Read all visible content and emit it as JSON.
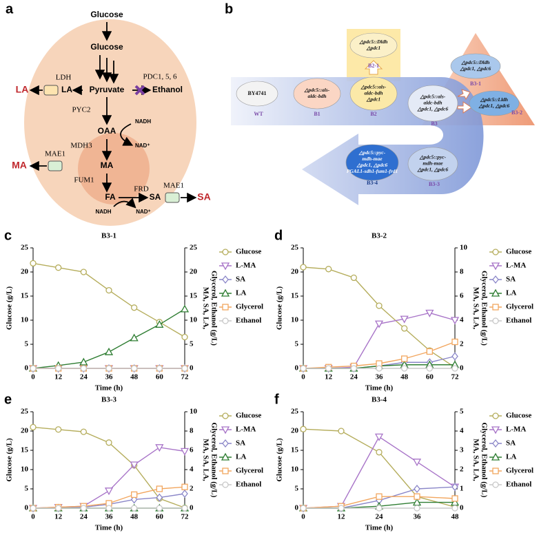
{
  "panel_a": {
    "label": "a",
    "glucose_ext": "Glucose",
    "glucose_in": "Glucose",
    "pyruvate": "Pyruvate",
    "ldh": "LDH",
    "la_in": "LA",
    "la_out": "LA",
    "pdc": "PDC1, 5, 6",
    "ethanol": "Ethanol",
    "pyc2": "PYC2",
    "oaa": "OAA",
    "nadh_1": "NADH",
    "nad_1": "NAD⁺",
    "mdh3": "MDH3",
    "mae1_ma": "MAE1",
    "ma_in": "MA",
    "ma_out": "MA",
    "fum1": "FUM1",
    "frd": "FRD",
    "fa": "FA",
    "sa_in": "SA",
    "mae1_sa": "MAE1",
    "sa_out": "SA",
    "nadh_2": "NADH",
    "nad_2": "NAD⁺"
  },
  "panel_b": {
    "label": "b",
    "strains": [
      {
        "genotype": [
          "BY4741"
        ],
        "name": "WT"
      },
      {
        "genotype": [
          "△pdc5::als-",
          "aldc-bdh"
        ],
        "name": "B1"
      },
      {
        "genotype": [
          "△pdc5::als-",
          "aldc-bdh",
          "△pdc1"
        ],
        "name": "B2"
      },
      {
        "genotype": [
          "△pdc5::als-",
          "aldc-bdh",
          "△pdc1, △pdc6"
        ],
        "name": "B3"
      },
      {
        "genotype": [
          "△pdc5::Dldh",
          "△pdc1"
        ],
        "name": "B2-1"
      },
      {
        "genotype": [
          "△pdc5::Dldh",
          "△pdc1, △pdc6"
        ],
        "name": "B3-1"
      },
      {
        "genotype": [
          "△pdc5::Lldh",
          "△pdc1, △pdc6"
        ],
        "name": "B3-2"
      },
      {
        "genotype": [
          "△pdc5::pyc-",
          "mdh-mae",
          "△pdc1, △pdc6"
        ],
        "name": "B3-3"
      },
      {
        "genotype": [
          "△pdc5::pyc-",
          "mdh-mae",
          "△pdc1, △pdc6",
          "PGAL1-sdh1-fum1-frd1"
        ],
        "name": "B3-4"
      }
    ]
  },
  "chart_data": [
    {
      "type": "line",
      "panel": "c",
      "title": "B3-1",
      "x_label": "Time (h)",
      "y_label": "Glucose (g/L)",
      "y2_label": [
        "MA, SA, LA,",
        "Glycerol, Ethanol (g/L)"
      ],
      "x": [
        0,
        12,
        24,
        36,
        48,
        60,
        72
      ],
      "xlim": [
        0,
        72
      ],
      "xticks": [
        0,
        12,
        24,
        36,
        48,
        60,
        72
      ],
      "ylim": [
        0,
        25
      ],
      "yticks": [
        0,
        5,
        10,
        15,
        20,
        25
      ],
      "y2lim": [
        0,
        25
      ],
      "y2ticks": [
        0,
        5,
        10,
        15,
        20,
        25
      ],
      "series": [
        {
          "name": "Glucose",
          "color": "#b5ad5c",
          "marker": "circle",
          "values": [
            21.8,
            20.9,
            20.0,
            16.2,
            12.6,
            9.6,
            6.5
          ]
        },
        {
          "name": "L-MA",
          "color": "#a874c8",
          "marker": "triangle-down",
          "axis": "y2",
          "values": [
            0,
            0,
            0,
            0,
            0,
            0,
            0
          ]
        },
        {
          "name": "SA",
          "color": "#8a86c8",
          "marker": "diamond",
          "axis": "y2",
          "values": [
            0,
            0,
            0,
            0,
            0,
            0,
            0
          ]
        },
        {
          "name": "LA",
          "color": "#2e7d32",
          "marker": "triangle-up",
          "axis": "y2",
          "values": [
            0,
            0.6,
            1.3,
            3.4,
            6.3,
            9.1,
            12.3
          ]
        },
        {
          "name": "Glycerol",
          "color": "#f2a65e",
          "marker": "square",
          "axis": "y2",
          "values": [
            0,
            0,
            0,
            0,
            0,
            0,
            0
          ]
        },
        {
          "name": "Ethanol",
          "color": "#c8c8c8",
          "marker": "circle",
          "axis": "y2",
          "values": [
            0,
            0,
            0,
            0,
            0,
            0,
            0
          ]
        }
      ]
    },
    {
      "type": "line",
      "panel": "d",
      "title": "B3-2",
      "x_label": "Time (h)",
      "y_label": "Glucose (g/L)",
      "y2_label": [
        "MA, SA, LA,",
        "Glycerol, Ethanol (g/L)"
      ],
      "x": [
        0,
        12,
        24,
        36,
        48,
        60,
        72
      ],
      "xlim": [
        0,
        72
      ],
      "xticks": [
        0,
        12,
        24,
        36,
        48,
        60,
        72
      ],
      "ylim": [
        0,
        25
      ],
      "yticks": [
        0,
        5,
        10,
        15,
        20,
        25
      ],
      "y2lim": [
        0,
        10
      ],
      "y2ticks": [
        0,
        2,
        4,
        6,
        8,
        10
      ],
      "series": [
        {
          "name": "Glucose",
          "color": "#b5ad5c",
          "marker": "circle",
          "values": [
            21.0,
            20.6,
            18.8,
            13.0,
            8.3,
            3.7,
            0.2
          ]
        },
        {
          "name": "L-MA",
          "color": "#a874c8",
          "marker": "triangle-down",
          "axis": "y2",
          "values": [
            0,
            0,
            0.1,
            3.7,
            4.1,
            4.6,
            4.0
          ]
        },
        {
          "name": "SA",
          "color": "#8a86c8",
          "marker": "diamond",
          "axis": "y2",
          "values": [
            0,
            0,
            0,
            0.2,
            0.5,
            0.5,
            1.0
          ]
        },
        {
          "name": "LA",
          "color": "#2e7d32",
          "marker": "triangle-up",
          "axis": "y2",
          "values": [
            0,
            0,
            0,
            0.2,
            0.3,
            0.3,
            0.3
          ]
        },
        {
          "name": "Glycerol",
          "color": "#f2a65e",
          "marker": "square",
          "axis": "y2",
          "values": [
            0,
            0.1,
            0.2,
            0.4,
            0.8,
            1.4,
            2.2
          ]
        },
        {
          "name": "Ethanol",
          "color": "#c8c8c8",
          "marker": "circle",
          "axis": "y2",
          "values": [
            0,
            0,
            0,
            0,
            0,
            0,
            0
          ]
        }
      ]
    },
    {
      "type": "line",
      "panel": "e",
      "title": "B3-3",
      "x_label": "Time (h)",
      "y_label": "Glucose (g/L)",
      "y2_label": [
        "MA, SA, LA,",
        "Glycerol, Ethanol (g/L)"
      ],
      "x": [
        0,
        12,
        24,
        36,
        48,
        60,
        72
      ],
      "xlim": [
        0,
        72
      ],
      "xticks": [
        0,
        12,
        24,
        36,
        48,
        60,
        72
      ],
      "ylim": [
        0,
        25
      ],
      "yticks": [
        0,
        5,
        10,
        15,
        20,
        25
      ],
      "y2lim": [
        0,
        10
      ],
      "y2ticks": [
        0,
        2,
        4,
        6,
        8,
        10
      ],
      "series": [
        {
          "name": "Glucose",
          "color": "#b5ad5c",
          "marker": "circle",
          "values": [
            21.0,
            20.4,
            19.8,
            17.0,
            11.1,
            2.5,
            0.1
          ]
        },
        {
          "name": "L-MA",
          "color": "#a874c8",
          "marker": "triangle-down",
          "axis": "y2",
          "values": [
            0,
            0.1,
            0.2,
            1.8,
            4.5,
            6.3,
            5.9
          ]
        },
        {
          "name": "SA",
          "color": "#8a86c8",
          "marker": "diamond",
          "axis": "y2",
          "values": [
            0,
            0,
            0.1,
            0.4,
            0.9,
            1.1,
            1.5
          ]
        },
        {
          "name": "LA",
          "color": "#2e7d32",
          "marker": "triangle-up",
          "axis": "y2",
          "values": [
            0,
            0,
            0,
            0,
            0,
            0,
            0
          ]
        },
        {
          "name": "Glycerol",
          "color": "#f2a65e",
          "marker": "square",
          "axis": "y2",
          "values": [
            0,
            0.1,
            0.2,
            0.5,
            1.4,
            2.0,
            2.2
          ]
        },
        {
          "name": "Ethanol",
          "color": "#c8c8c8",
          "marker": "circle",
          "axis": "y2",
          "values": [
            0,
            0,
            0,
            0,
            0,
            0,
            0
          ]
        }
      ]
    },
    {
      "type": "line",
      "panel": "f",
      "title": "B3-4",
      "x_label": "Time (h)",
      "y_label": "Glucose (g/L)",
      "y2_label": [
        "MA, SA, LA,",
        "Glycerol, Ethanol (g/L)"
      ],
      "x": [
        0,
        12,
        24,
        36,
        48
      ],
      "xlim": [
        0,
        48
      ],
      "xticks": [
        0,
        12,
        24,
        36,
        48
      ],
      "ylim": [
        0,
        25
      ],
      "yticks": [
        0,
        5,
        10,
        15,
        20,
        25
      ],
      "y2lim": [
        0,
        5
      ],
      "y2ticks": [
        0,
        1,
        2,
        3,
        4,
        5
      ],
      "series": [
        {
          "name": "Glucose",
          "color": "#b5ad5c",
          "marker": "circle",
          "values": [
            20.5,
            20.0,
            14.5,
            3.0,
            0.3
          ]
        },
        {
          "name": "L-MA",
          "color": "#a874c8",
          "marker": "triangle-down",
          "axis": "y2",
          "values": [
            0,
            0.1,
            3.7,
            2.4,
            1.1
          ]
        },
        {
          "name": "SA",
          "color": "#8a86c8",
          "marker": "diamond",
          "axis": "y2",
          "values": [
            0,
            0,
            0.4,
            1.0,
            1.1
          ]
        },
        {
          "name": "LA",
          "color": "#2e7d32",
          "marker": "triangle-up",
          "axis": "y2",
          "values": [
            0,
            0,
            0.1,
            0.3,
            0.3
          ]
        },
        {
          "name": "Glycerol",
          "color": "#f2a65e",
          "marker": "square",
          "axis": "y2",
          "values": [
            0,
            0.1,
            0.6,
            0.6,
            0.5
          ]
        },
        {
          "name": "Ethanol",
          "color": "#c8c8c8",
          "marker": "circle",
          "axis": "y2",
          "values": [
            0,
            0,
            0,
            0,
            0
          ]
        }
      ]
    }
  ]
}
